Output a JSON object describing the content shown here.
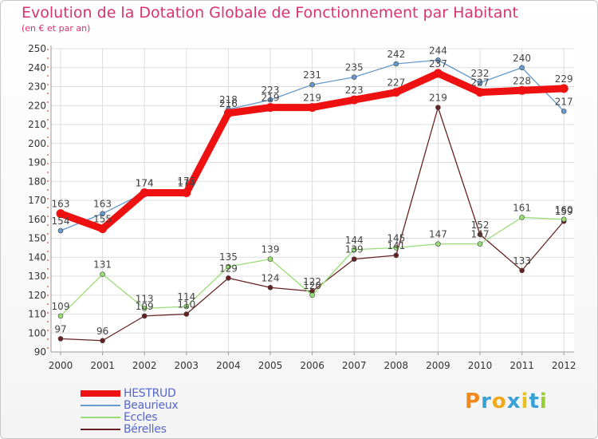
{
  "chart_data": {
    "type": "line",
    "title": "Evolution de la Dotation Globale de Fonctionnement par Habitant",
    "subtitle": "(en € et par an)",
    "xlabel": "",
    "ylabel": "",
    "ylim": [
      90,
      250
    ],
    "yticks": [
      90,
      100,
      110,
      120,
      130,
      140,
      150,
      160,
      170,
      180,
      190,
      200,
      210,
      220,
      230,
      240,
      250
    ],
    "grid": true,
    "categories": [
      "2000",
      "2001",
      "2002",
      "2003",
      "2004",
      "2005",
      "2006",
      "2007",
      "2008",
      "2009",
      "2010",
      "2011",
      "2012"
    ],
    "series": [
      {
        "name": "HESTRUD",
        "color": "#ee1111",
        "values": [
          163,
          155,
          174,
          174,
          216,
          219,
          219,
          223,
          227,
          237,
          227,
          228,
          229
        ]
      },
      {
        "name": "Beaurieux",
        "color": "#6699cc",
        "values": [
          154,
          163,
          174,
          175,
          218,
          223,
          231,
          235,
          242,
          244,
          232,
          240,
          217
        ]
      },
      {
        "name": "Eccles",
        "color": "#99dd77",
        "values": [
          109,
          131,
          113,
          114,
          135,
          139,
          120,
          144,
          145,
          147,
          147,
          161,
          160
        ]
      },
      {
        "name": "Bérelles",
        "color": "#662222",
        "values": [
          97,
          96,
          109,
          110,
          129,
          124,
          122,
          139,
          141,
          219,
          152,
          133,
          159
        ]
      }
    ]
  },
  "logo": {
    "text": "Proxiti",
    "colors": [
      "#f08a1c",
      "#3aa0d8",
      "#f0a81c",
      "#3aa0d8",
      "#e8c020",
      "#3aa0d8",
      "#9acd32"
    ]
  }
}
